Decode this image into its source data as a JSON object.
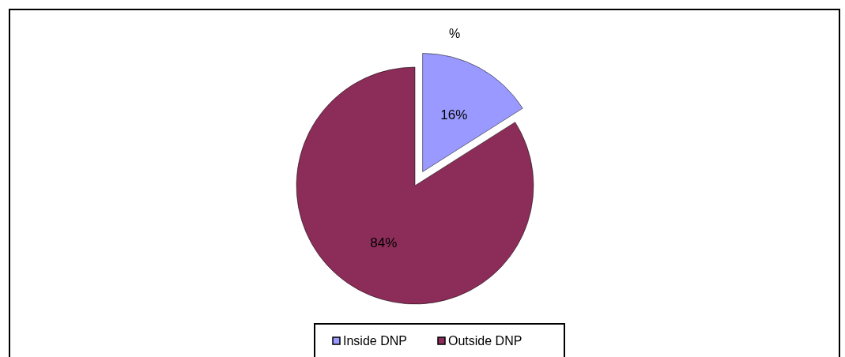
{
  "chart_data": {
    "type": "pie",
    "title": "%",
    "categories": [
      "Inside DNP",
      "Outside DNP"
    ],
    "values": [
      16,
      84
    ],
    "colors": [
      "#9999ff",
      "#8b2d58"
    ],
    "value_labels": [
      "16%",
      "84%"
    ],
    "legend": "bottom"
  }
}
